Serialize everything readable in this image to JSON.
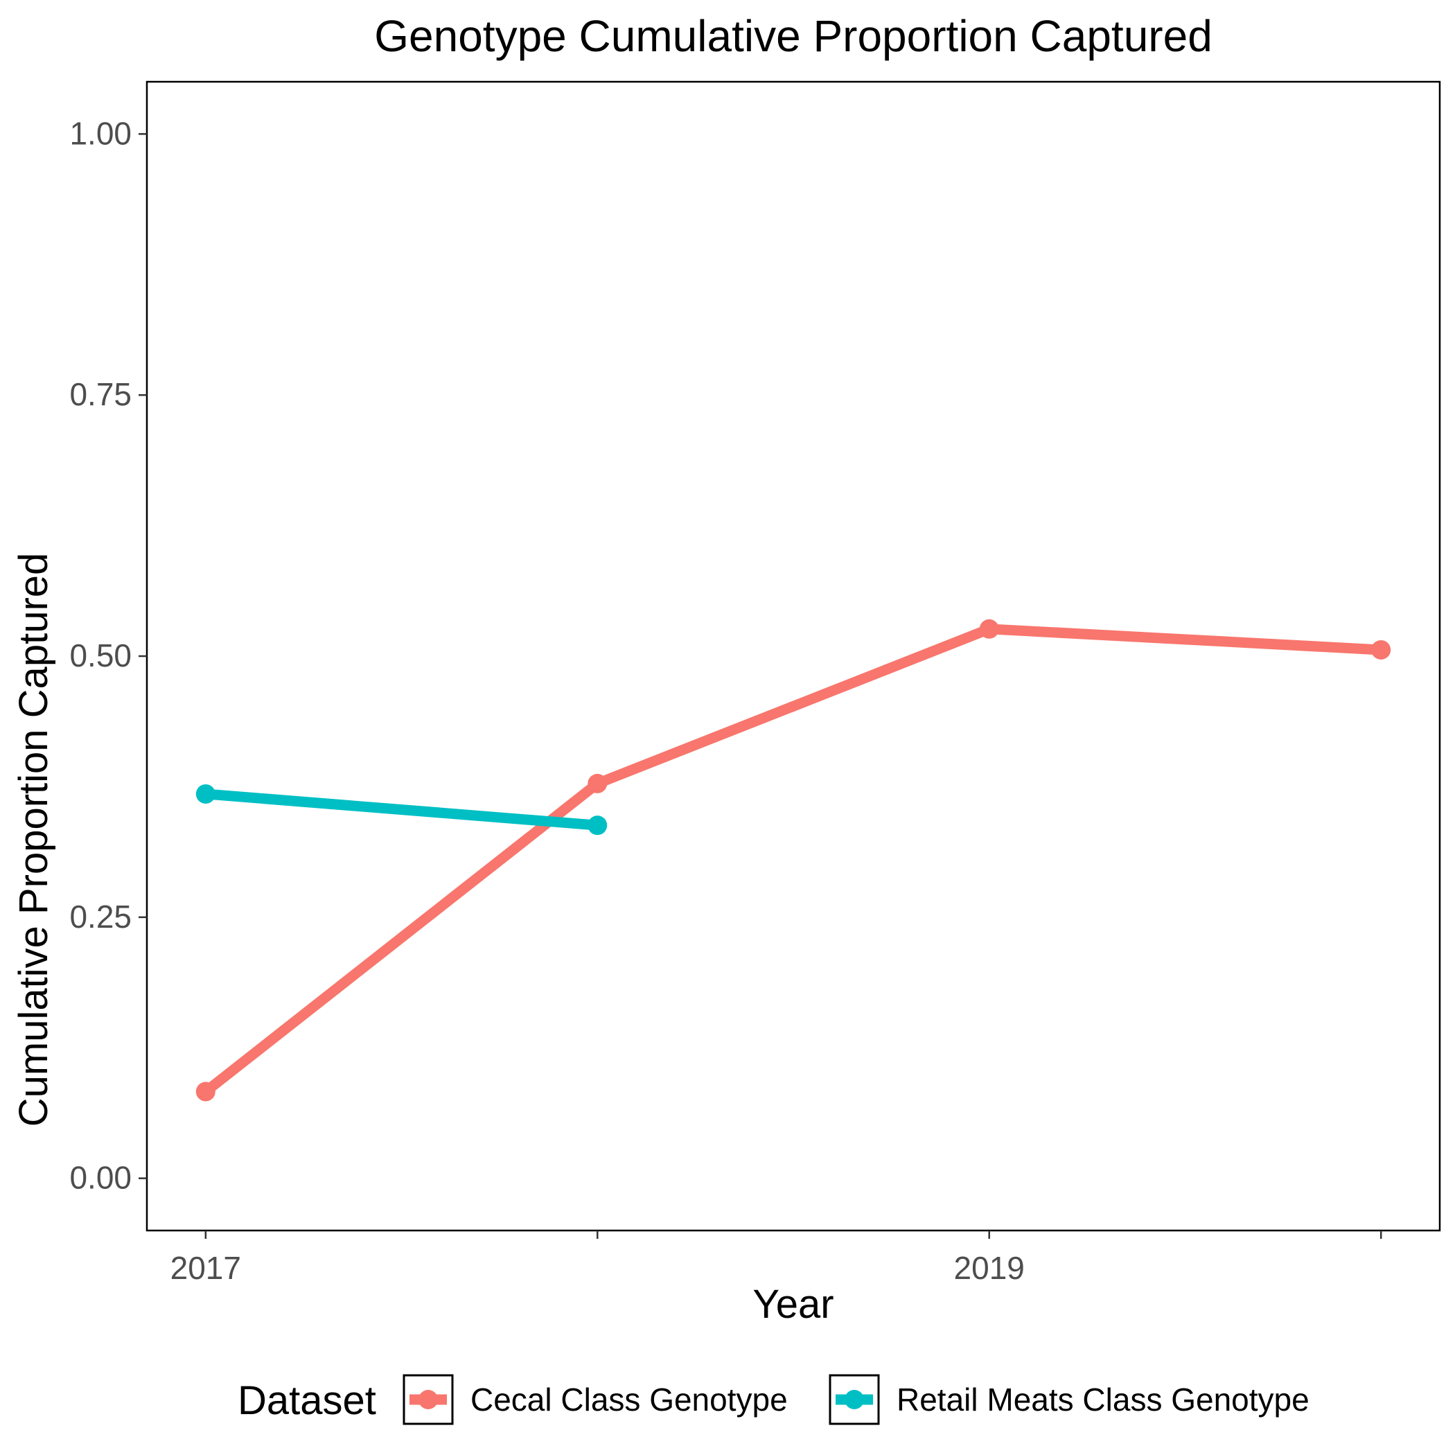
{
  "chart_data": {
    "type": "line",
    "title": "Genotype Cumulative Proportion Captured",
    "xlabel": "Year",
    "ylabel": "Cumulative Proportion Captured",
    "x_ticks": [
      2017,
      2018,
      2019,
      2020
    ],
    "x_tick_labels": [
      "2017",
      "",
      "2019",
      ""
    ],
    "y_ticks": [
      0,
      0.25,
      0.5,
      0.75,
      1
    ],
    "y_tick_labels": [
      "0.00",
      "0.25",
      "0.50",
      "0.75",
      "1.00"
    ],
    "xlim": [
      2016.85,
      2020.15
    ],
    "ylim": [
      -0.05,
      1.05
    ],
    "grid": false,
    "legend": {
      "title": "Dataset",
      "position": "bottom"
    },
    "series": [
      {
        "name": "Cecal Class Genotype",
        "color": "#F8766D",
        "x": [
          2017,
          2018,
          2019,
          2020
        ],
        "y": [
          0.083,
          0.378,
          0.526,
          0.506
        ]
      },
      {
        "name": "Retail Meats Class Genotype",
        "color": "#00BFC4",
        "x": [
          2017,
          2018
        ],
        "y": [
          0.368,
          0.338
        ]
      }
    ]
  }
}
